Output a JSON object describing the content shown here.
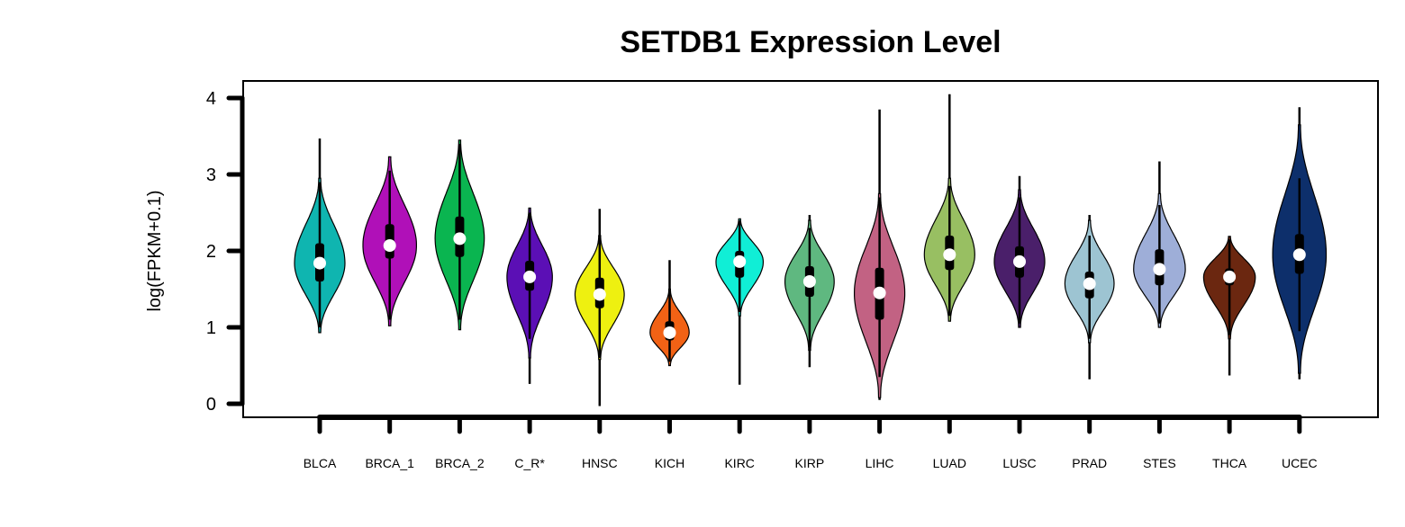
{
  "chart_data": {
    "type": "violin",
    "title": "SETDB1 Expression Level",
    "xlabel": "",
    "ylabel": "log(FPKM+0.1)",
    "ylim": [
      0,
      4
    ],
    "yticks": [
      "0",
      "1",
      "2",
      "3",
      "4"
    ],
    "grid": false,
    "legend": "none",
    "categories": [
      "BLCA",
      "BRCA_1",
      "BRCA_2",
      "C_R*",
      "HNSC",
      "KICH",
      "KIRC",
      "KIRP",
      "LIHC",
      "LUAD",
      "LUSC",
      "PRAD",
      "STES",
      "THCA",
      "UCEC"
    ],
    "series": [
      {
        "category": "BLCA",
        "color": "#0fb5b0",
        "min": 0.93,
        "max": 3.47,
        "q1": 1.6,
        "median": 1.84,
        "q3": 2.1,
        "whisker_low": 1.0,
        "whisker_high": 2.9,
        "violin_low": 0.93,
        "violin_high": 2.95,
        "mode": 1.84,
        "width": 0.8
      },
      {
        "category": "BRCA_1",
        "color": "#b010b8",
        "min": 1.02,
        "max": 3.23,
        "q1": 1.9,
        "median": 2.07,
        "q3": 2.35,
        "whisker_low": 1.1,
        "whisker_high": 3.05,
        "violin_low": 1.02,
        "violin_high": 3.23,
        "mode": 2.07,
        "width": 0.85
      },
      {
        "category": "BRCA_2",
        "color": "#0ab550",
        "min": 0.97,
        "max": 3.45,
        "q1": 1.92,
        "median": 2.16,
        "q3": 2.45,
        "whisker_low": 1.1,
        "whisker_high": 3.4,
        "violin_low": 0.97,
        "violin_high": 3.45,
        "mode": 2.16,
        "width": 0.78
      },
      {
        "category": "C_R*",
        "color": "#5b0fb5",
        "min": 0.26,
        "max": 2.56,
        "q1": 1.48,
        "median": 1.66,
        "q3": 1.87,
        "whisker_low": 0.85,
        "whisker_high": 2.5,
        "violin_low": 0.6,
        "violin_high": 2.56,
        "mode": 1.66,
        "width": 0.72
      },
      {
        "category": "HNSC",
        "color": "#eef010",
        "min": -0.03,
        "max": 2.55,
        "q1": 1.25,
        "median": 1.43,
        "q3": 1.65,
        "whisker_low": 0.6,
        "whisker_high": 2.2,
        "violin_low": 0.58,
        "violin_high": 2.2,
        "mode": 1.43,
        "width": 0.78
      },
      {
        "category": "KICH",
        "color": "#f26215",
        "min": 0.5,
        "max": 1.88,
        "q1": 0.83,
        "median": 0.93,
        "q3": 1.08,
        "whisker_low": 0.55,
        "whisker_high": 1.5,
        "violin_low": 0.5,
        "violin_high": 1.5,
        "mode": 0.93,
        "width": 0.62
      },
      {
        "category": "KIRC",
        "color": "#10eed6",
        "min": 0.25,
        "max": 2.42,
        "q1": 1.65,
        "median": 1.86,
        "q3": 2.0,
        "whisker_low": 1.2,
        "whisker_high": 2.4,
        "violin_low": 1.15,
        "violin_high": 2.42,
        "mode": 1.86,
        "width": 0.75
      },
      {
        "category": "KIRP",
        "color": "#5fb880",
        "min": 0.48,
        "max": 2.47,
        "q1": 1.4,
        "median": 1.6,
        "q3": 1.8,
        "whisker_low": 0.7,
        "whisker_high": 2.3,
        "violin_low": 0.7,
        "violin_high": 2.4,
        "mode": 1.6,
        "width": 0.78
      },
      {
        "category": "LIHC",
        "color": "#c26283",
        "min": 0.05,
        "max": 3.85,
        "q1": 1.1,
        "median": 1.45,
        "q3": 1.78,
        "whisker_low": 0.35,
        "whisker_high": 2.7,
        "violin_low": 0.08,
        "violin_high": 2.75,
        "mode": 1.45,
        "width": 0.8
      },
      {
        "category": "LUAD",
        "color": "#98bf62",
        "min": 1.08,
        "max": 4.05,
        "q1": 1.75,
        "median": 1.95,
        "q3": 2.2,
        "whisker_low": 1.15,
        "whisker_high": 2.85,
        "violin_low": 1.08,
        "violin_high": 2.95,
        "mode": 1.95,
        "width": 0.8
      },
      {
        "category": "LUSC",
        "color": "#4a1f6a",
        "min": 1.0,
        "max": 2.98,
        "q1": 1.65,
        "median": 1.86,
        "q3": 2.06,
        "whisker_low": 1.05,
        "whisker_high": 2.7,
        "violin_low": 1.0,
        "violin_high": 2.8,
        "mode": 1.86,
        "width": 0.8
      },
      {
        "category": "PRAD",
        "color": "#9dc4d2",
        "min": 0.32,
        "max": 2.47,
        "q1": 1.38,
        "median": 1.57,
        "q3": 1.73,
        "whisker_low": 0.85,
        "whisker_high": 2.2,
        "violin_low": 0.8,
        "violin_high": 2.4,
        "mode": 1.57,
        "width": 0.78
      },
      {
        "category": "STES",
        "color": "#9eaed8",
        "min": 1.0,
        "max": 3.17,
        "q1": 1.55,
        "median": 1.76,
        "q3": 2.02,
        "whisker_low": 1.05,
        "whisker_high": 2.6,
        "violin_low": 1.0,
        "violin_high": 2.75,
        "mode": 1.76,
        "width": 0.82
      },
      {
        "category": "THCA",
        "color": "#6b2710",
        "min": 0.37,
        "max": 2.19,
        "q1": 1.55,
        "median": 1.66,
        "q3": 1.77,
        "whisker_low": 0.9,
        "whisker_high": 2.15,
        "violin_low": 0.85,
        "violin_high": 2.19,
        "mode": 1.66,
        "width": 0.82
      },
      {
        "category": "UCEC",
        "color": "#0d2f6b",
        "min": 0.32,
        "max": 3.88,
        "q1": 1.7,
        "median": 1.95,
        "q3": 2.22,
        "whisker_low": 0.95,
        "whisker_high": 2.95,
        "violin_low": 0.4,
        "violin_high": 3.65,
        "mode": 1.95,
        "width": 0.85
      }
    ]
  }
}
